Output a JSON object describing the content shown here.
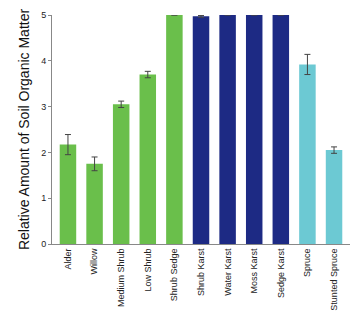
{
  "chart_data": {
    "type": "bar",
    "y_label": "Relative Amount of Soil Organic Matter",
    "categories": [
      "Alder",
      "Willow",
      "Medium Shrub",
      "Low Shrub",
      "Shrub Sedge",
      "Shrub Karst",
      "Water Karst",
      "Moss Karst",
      "Sedge Karst",
      "Spruce",
      "Stunted Spruce"
    ],
    "values": [
      2.17,
      1.75,
      3.05,
      3.7,
      5.0,
      4.97,
      5.0,
      5.0,
      5.0,
      3.92,
      2.05
    ],
    "errors": [
      0.22,
      0.15,
      0.07,
      0.07,
      0.0,
      0.02,
      0.0,
      0.0,
      0.0,
      0.22,
      0.07
    ],
    "colors": [
      "#6abf4b",
      "#6abf4b",
      "#6abf4b",
      "#6abf4b",
      "#6abf4b",
      "#1d2a84",
      "#1d2a84",
      "#1d2a84",
      "#1d2a84",
      "#6cc9d3",
      "#6cc9d3"
    ],
    "ylim": [
      0,
      5
    ],
    "yticks": [
      0,
      1,
      2,
      3,
      4,
      5
    ],
    "grid": false
  }
}
